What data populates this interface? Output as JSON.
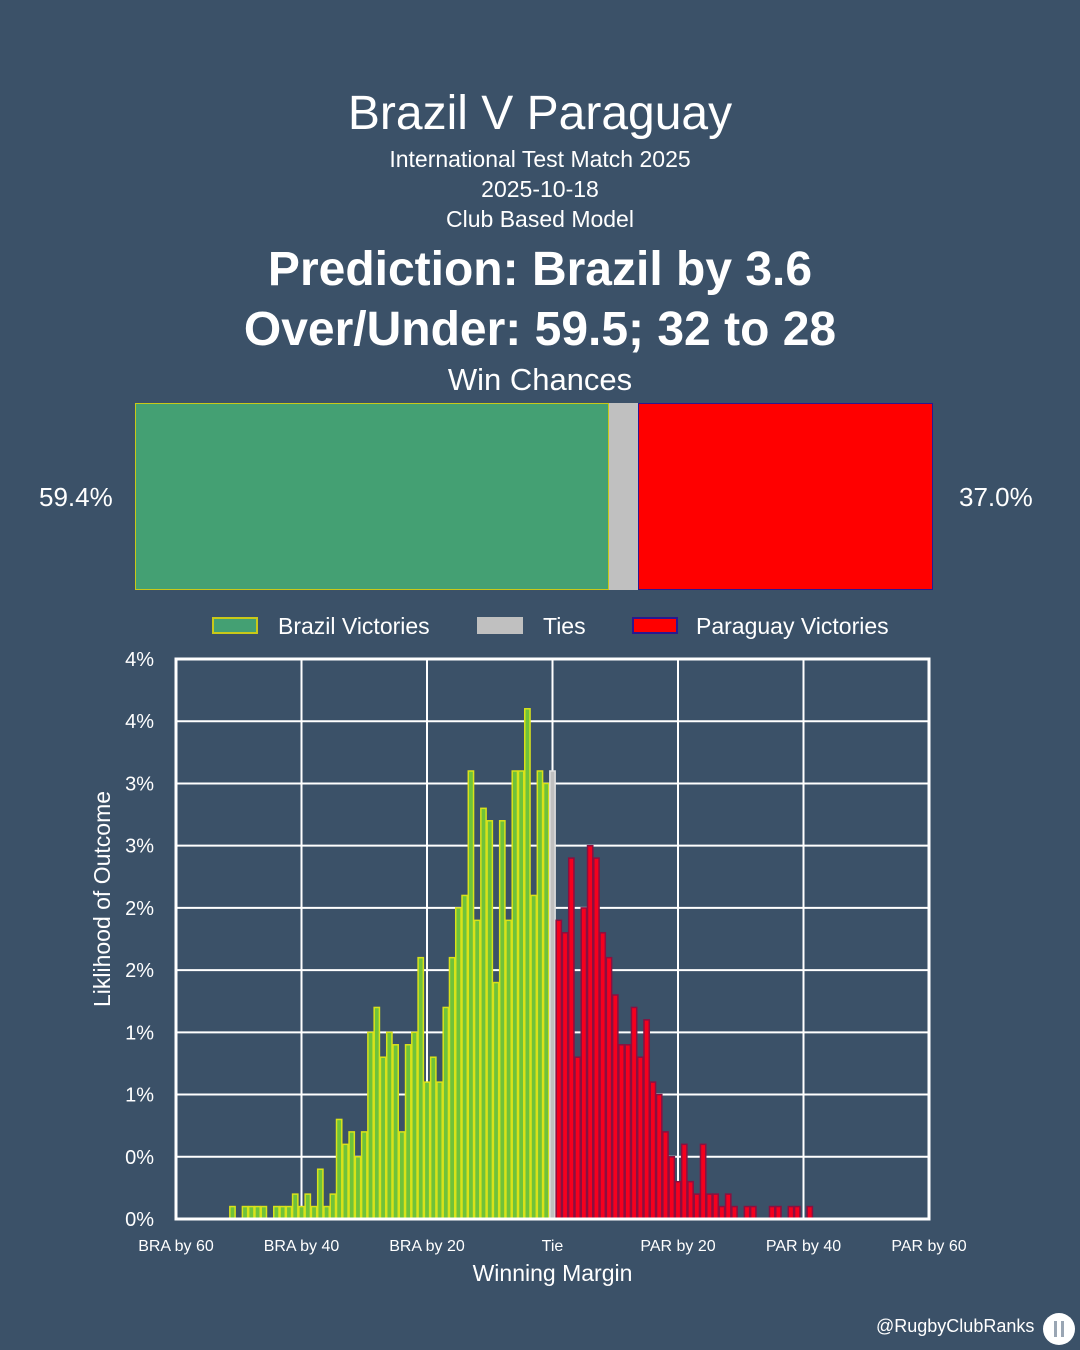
{
  "header": {
    "title": "Brazil V Paraguay",
    "competition": "International Test Match 2025",
    "date": "2025-10-18",
    "model": "Club Based Model",
    "prediction": "Prediction: Brazil by 3.6",
    "over_under": "Over/Under: 59.5; 32 to 28"
  },
  "win_chances": {
    "title": "Win Chances",
    "left_label": "59.4%",
    "right_label": "37.0%",
    "brazil_pct": 59.4,
    "tie_pct": 3.6,
    "paraguay_pct": 37.0
  },
  "legend": {
    "brazil": "Brazil Victories",
    "ties": "Ties",
    "paraguay": "Paraguay Victories"
  },
  "colors": {
    "background": "#3b5168",
    "brazil_fill": "#44a073",
    "brazil_edge": "#c9c918",
    "brazil_hist_fill": "#6fc23a",
    "brazil_hist_edge": "#d9e21a",
    "tie_fill": "#c0c0c0",
    "paraguay_fill": "#ff0000",
    "paraguay_edge": "#2b1890",
    "paraguay_hist_fill": "#f5001e",
    "paraguay_hist_edge": "#8a1040",
    "plot_bg": "#3b5168",
    "grid": "#ffffff"
  },
  "chart_data": {
    "type": "bar",
    "xlabel": "Winning Margin",
    "ylabel": "Liklihood of Outcome",
    "xlim": [
      -60,
      60
    ],
    "ylim": [
      0,
      4.5
    ],
    "x_ticks": [
      -60,
      -40,
      -20,
      0,
      20,
      40,
      60
    ],
    "x_tick_labels": [
      "BRA by 60",
      "BRA by 40",
      "BRA by 20",
      "Tie",
      "PAR by 20",
      "PAR by 40",
      "PAR by 60"
    ],
    "y_ticks": [
      0,
      0.5,
      1,
      1.5,
      2,
      2.5,
      3,
      3.5,
      4,
      4.5
    ],
    "y_tick_labels": [
      "0%",
      "0%",
      "1%",
      "1%",
      "2%",
      "2%",
      "3%",
      "3%",
      "4%",
      "4%"
    ],
    "series": [
      {
        "name": "Brazil Victories",
        "x": [
          -51,
          -49,
          -48,
          -47,
          -46,
          -44,
          -43,
          -42,
          -41,
          -40,
          -39,
          -38,
          -37,
          -36,
          -35,
          -34,
          -33,
          -32,
          -31,
          -30,
          -29,
          -28,
          -27,
          -26,
          -25,
          -24,
          -23,
          -22,
          -21,
          -20,
          -19,
          -18,
          -17,
          -16,
          -15,
          -14,
          -13,
          -12,
          -11,
          -10,
          -9,
          -8,
          -7,
          -6,
          -5,
          -4,
          -3,
          -2,
          -1
        ],
        "values": [
          0.1,
          0.1,
          0.1,
          0.1,
          0.1,
          0.1,
          0.1,
          0.1,
          0.2,
          0.1,
          0.2,
          0.1,
          0.4,
          0.1,
          0.2,
          0.8,
          0.6,
          0.7,
          0.5,
          0.7,
          1.5,
          1.7,
          1.3,
          1.5,
          1.4,
          0.7,
          1.4,
          1.5,
          2.1,
          1.1,
          1.3,
          1.1,
          1.7,
          2.1,
          2.5,
          2.6,
          3.6,
          2.4,
          3.3,
          3.2,
          1.9,
          3.2,
          2.4,
          3.6,
          3.6,
          4.1,
          2.6,
          3.6,
          3.5
        ],
        "color": "#6fc23a"
      },
      {
        "name": "Ties",
        "x": [
          0
        ],
        "values": [
          3.6
        ],
        "color": "#c0c0c0"
      },
      {
        "name": "Paraguay Victories",
        "x": [
          1,
          2,
          3,
          4,
          5,
          6,
          7,
          8,
          9,
          10,
          11,
          12,
          13,
          14,
          15,
          16,
          17,
          18,
          19,
          20,
          21,
          22,
          23,
          24,
          25,
          26,
          27,
          28,
          29,
          31,
          32,
          35,
          36,
          38,
          39,
          41
        ],
        "values": [
          2.4,
          2.3,
          2.9,
          1.3,
          2.5,
          3.0,
          2.9,
          2.3,
          2.1,
          1.8,
          1.4,
          1.4,
          1.7,
          1.3,
          1.6,
          1.1,
          1.0,
          0.7,
          0.5,
          0.3,
          0.6,
          0.3,
          0.2,
          0.6,
          0.2,
          0.2,
          0.1,
          0.2,
          0.1,
          0.1,
          0.1,
          0.1,
          0.1,
          0.1,
          0.1,
          0.1
        ],
        "color": "#f5001e"
      }
    ]
  },
  "footer": {
    "handle": "@RugbyClubRanks",
    "logo_icon": "rugby-posts-logo-icon"
  }
}
